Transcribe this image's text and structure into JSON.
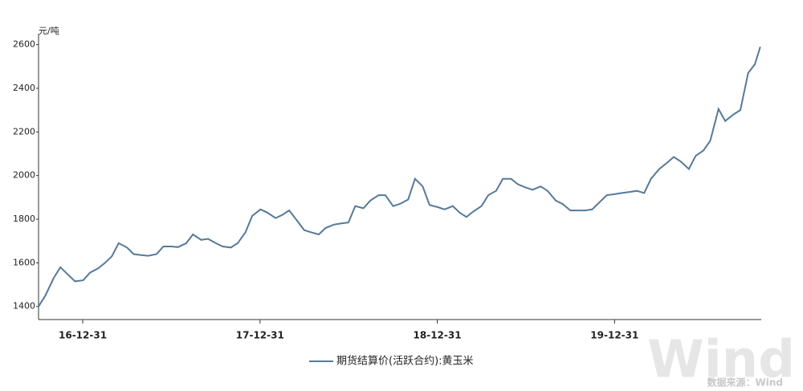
{
  "chart_data": {
    "type": "line",
    "y_unit": "元/吨",
    "source": "数据来源：Wind",
    "watermark": "Wind",
    "xlim": [
      "16-10-01",
      "20-10-28"
    ],
    "xticks": [
      "16-12-31",
      "17-12-31",
      "18-12-31",
      "19-12-31"
    ],
    "ylim": [
      1340,
      2650
    ],
    "yticks": [
      1400,
      1600,
      1800,
      2000,
      2200,
      2400,
      2600
    ],
    "grid": false,
    "legend": "bottom",
    "x": [
      "16-10-01",
      "16-10-15",
      "16-11-01",
      "16-11-15",
      "16-12-01",
      "16-12-15",
      "17-01-01",
      "17-01-15",
      "17-02-01",
      "17-02-15",
      "17-03-01",
      "17-03-15",
      "17-04-01",
      "17-04-15",
      "17-05-01",
      "17-05-15",
      "17-06-01",
      "17-06-15",
      "17-07-01",
      "17-07-15",
      "17-08-01",
      "17-08-15",
      "17-09-01",
      "17-09-15",
      "17-10-01",
      "17-10-15",
      "17-11-01",
      "17-11-15",
      "17-12-01",
      "17-12-15",
      "18-01-01",
      "18-01-15",
      "18-02-01",
      "18-02-15",
      "18-03-01",
      "18-03-15",
      "18-04-01",
      "18-04-15",
      "18-05-01",
      "18-05-15",
      "18-06-01",
      "18-06-15",
      "18-07-01",
      "18-07-15",
      "18-08-01",
      "18-08-15",
      "18-09-01",
      "18-09-15",
      "18-10-01",
      "18-10-15",
      "18-11-01",
      "18-11-15",
      "18-12-01",
      "18-12-15",
      "19-01-01",
      "19-01-15",
      "19-02-01",
      "19-02-15",
      "19-03-01",
      "19-03-15",
      "19-04-01",
      "19-04-15",
      "19-05-01",
      "19-05-15",
      "19-06-01",
      "19-06-15",
      "19-07-01",
      "19-07-15",
      "19-08-01",
      "19-08-15",
      "19-09-01",
      "19-09-15",
      "19-10-01",
      "19-10-15",
      "19-11-01",
      "19-11-15",
      "19-12-01",
      "19-12-15",
      "20-01-01",
      "20-01-15",
      "20-02-01",
      "20-02-15",
      "20-03-01",
      "20-03-15",
      "20-04-01",
      "20-04-15",
      "20-05-01",
      "20-05-15",
      "20-06-01",
      "20-06-15",
      "20-07-01",
      "20-07-15",
      "20-08-01",
      "20-08-15",
      "20-09-01",
      "20-09-15",
      "20-10-01",
      "20-10-15",
      "20-10-26"
    ],
    "series": [
      {
        "name": "期货结算价(活跃合约):黄玉米",
        "color": "#55799a",
        "values": [
          1400,
          1450,
          1530,
          1580,
          1545,
          1515,
          1520,
          1555,
          1575,
          1600,
          1630,
          1690,
          1670,
          1640,
          1635,
          1632,
          1640,
          1675,
          1675,
          1672,
          1690,
          1730,
          1705,
          1710,
          1690,
          1675,
          1670,
          1690,
          1740,
          1815,
          1845,
          1830,
          1805,
          1820,
          1840,
          1800,
          1750,
          1740,
          1730,
          1760,
          1775,
          1780,
          1785,
          1860,
          1850,
          1885,
          1910,
          1910,
          1860,
          1870,
          1890,
          1985,
          1950,
          1865,
          1855,
          1845,
          1860,
          1830,
          1810,
          1835,
          1860,
          1910,
          1930,
          1985,
          1985,
          1960,
          1945,
          1935,
          1950,
          1930,
          1885,
          1870,
          1840,
          1840,
          1840,
          1845,
          1880,
          1910,
          1915,
          1920,
          1925,
          1930,
          1920,
          1985,
          2030,
          2055,
          2085,
          2065,
          2030,
          2090,
          2115,
          2160,
          2305,
          2250,
          2280,
          2300,
          2470,
          2510,
          2590
        ]
      }
    ]
  }
}
